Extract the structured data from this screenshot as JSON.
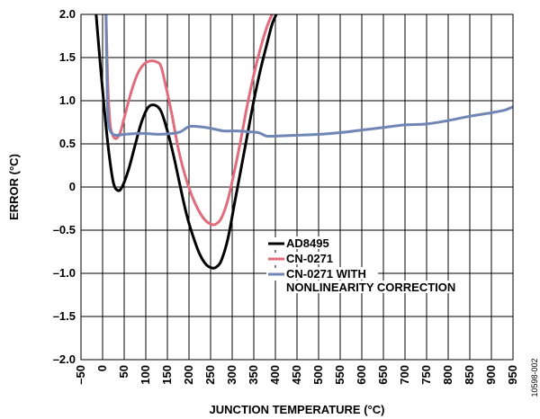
{
  "chart_data": {
    "type": "line",
    "xlabel": "JUNCTION TEMPERATURE (°C)",
    "ylabel": "ERROR (°C)",
    "xlim": [
      -50,
      950
    ],
    "ylim": [
      -2.0,
      2.0
    ],
    "xticks": [
      -50,
      0,
      50,
      100,
      150,
      200,
      250,
      300,
      350,
      400,
      450,
      500,
      550,
      600,
      650,
      700,
      750,
      800,
      850,
      900,
      950
    ],
    "xtick_labels": [
      "–50",
      "0",
      "50",
      "100",
      "150",
      "200",
      "250",
      "300",
      "350",
      "400",
      "450",
      "500",
      "550",
      "600",
      "650",
      "700",
      "750",
      "800",
      "850",
      "900",
      "950"
    ],
    "yticks": [
      2.0,
      1.5,
      1.0,
      0.5,
      0,
      -0.5,
      -1.0,
      -1.5,
      -2.0
    ],
    "ytick_labels": [
      "2.0",
      "1.5",
      "1.0",
      "0.5",
      "0",
      "–0.5",
      "–1.0",
      "–1.5",
      "–2.0"
    ],
    "grid": true,
    "legend_position": "lower-right",
    "figure_id": "10598-002",
    "series": [
      {
        "name": "AD8495",
        "color": "#000000",
        "x": [
          -15,
          -5,
          5,
          15,
          25,
          35,
          45,
          60,
          75,
          90,
          105,
          120,
          135,
          150,
          165,
          180,
          195,
          210,
          225,
          240,
          255,
          265,
          275,
          290,
          305,
          320,
          335,
          350,
          365,
          380,
          392,
          402
        ],
        "y": [
          2.0,
          1.4,
          0.85,
          0.38,
          0.05,
          -0.04,
          0.0,
          0.2,
          0.48,
          0.75,
          0.92,
          0.95,
          0.88,
          0.65,
          0.35,
          0.0,
          -0.33,
          -0.58,
          -0.78,
          -0.9,
          -0.94,
          -0.92,
          -0.85,
          -0.6,
          -0.2,
          0.2,
          0.6,
          1.0,
          1.35,
          1.65,
          1.88,
          2.0
        ]
      },
      {
        "name": "CN-0271",
        "color": "#e06c7c",
        "x": [
          8,
          12,
          17,
          22,
          30,
          40,
          50,
          65,
          80,
          95,
          110,
          125,
          135,
          145,
          160,
          175,
          190,
          205,
          220,
          235,
          250,
          262,
          275,
          290,
          305,
          320,
          335,
          350,
          365,
          380,
          392
        ],
        "y": [
          2.0,
          1.2,
          0.75,
          0.62,
          0.56,
          0.62,
          0.8,
          1.08,
          1.3,
          1.42,
          1.46,
          1.45,
          1.4,
          1.2,
          0.85,
          0.45,
          0.15,
          -0.08,
          -0.25,
          -0.37,
          -0.43,
          -0.43,
          -0.36,
          -0.15,
          0.18,
          0.55,
          0.95,
          1.3,
          1.6,
          1.85,
          2.0
        ]
      },
      {
        "name": "CN-0271 WITH NONLINEARITY CORRECTION",
        "color": "#6f86b5",
        "x": [
          8,
          10,
          12,
          15,
          20,
          30,
          50,
          80,
          100,
          130,
          160,
          180,
          200,
          220,
          250,
          280,
          310,
          340,
          360,
          370,
          380,
          400,
          450,
          500,
          550,
          600,
          650,
          700,
          750,
          800,
          850,
          900,
          930,
          950
        ],
        "y": [
          2.0,
          1.3,
          0.85,
          0.7,
          0.63,
          0.6,
          0.61,
          0.62,
          0.62,
          0.61,
          0.62,
          0.64,
          0.7,
          0.7,
          0.68,
          0.65,
          0.65,
          0.64,
          0.63,
          0.61,
          0.59,
          0.59,
          0.6,
          0.61,
          0.63,
          0.66,
          0.69,
          0.72,
          0.73,
          0.77,
          0.82,
          0.86,
          0.89,
          0.93
        ]
      }
    ],
    "legend_lines": [
      [
        "AD8495"
      ],
      [
        "CN-0271"
      ],
      [
        "CN-0271 WITH",
        "NONLINEARITY CORRECTION"
      ]
    ]
  }
}
